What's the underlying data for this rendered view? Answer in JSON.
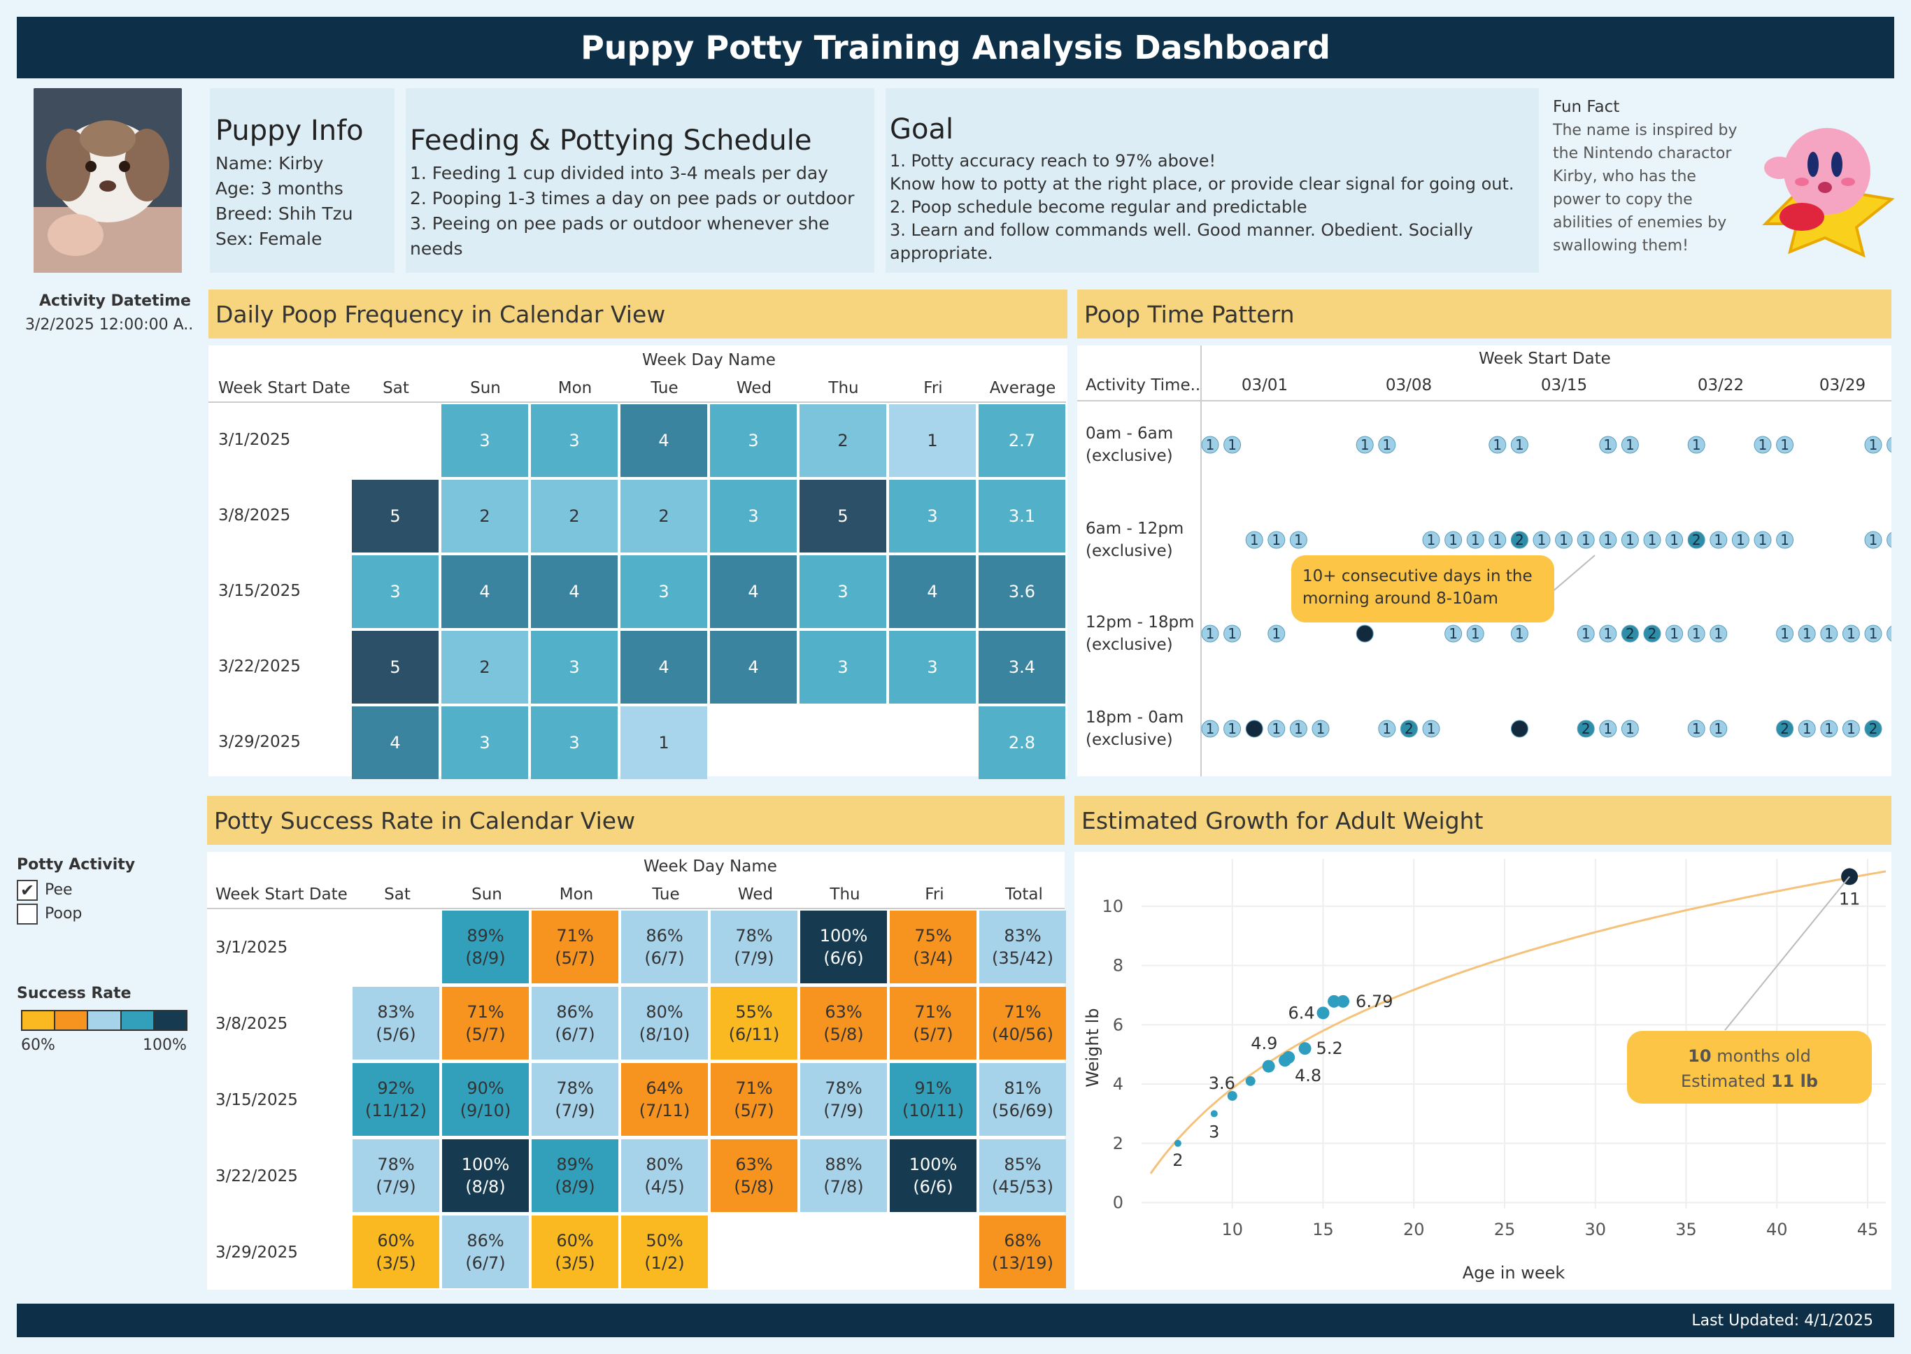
{
  "title": "Puppy Potty Training Analysis Dashboard",
  "footer": "Last Updated: 4/1/2025",
  "puppy_info": {
    "heading": "Puppy Info",
    "lines": [
      "Name: Kirby",
      "Age: 3 months",
      "Breed: Shih Tzu",
      "Sex: Female"
    ]
  },
  "schedule": {
    "heading": "Feeding & Pottying Schedule",
    "lines": [
      "1. Feeding 1 cup divided into 3-4 meals per day",
      "2. Pooping 1-3 times a day on pee pads or outdoor",
      "3. Peeing on pee pads or outdoor whenever she needs"
    ]
  },
  "goal": {
    "heading": "Goal",
    "lines": [
      "1. Potty accuracy reach to 97% above!",
      "Know how to potty at the right place, or provide clear signal for going out.",
      "2. Poop schedule become regular and predictable",
      "3. Learn and follow commands well. Good manner. Obedient. Socially appropriate."
    ]
  },
  "fun_fact": {
    "heading": "Fun Fact",
    "lines": [
      "The name is inspired by",
      "the Nintendo charactor",
      "Kirby, who has the",
      "power to copy the",
      "abilities of enemies by",
      "swallowing them!"
    ]
  },
  "filters": {
    "activity_datetime_label": "Activity Datetime",
    "activity_datetime_value": "3/2/2025 12:00:00 A..",
    "potty_activity_label": "Potty Activity",
    "options": [
      {
        "label": "Pee",
        "checked": true
      },
      {
        "label": "Poop",
        "checked": false
      }
    ],
    "success_rate_label": "Success Rate",
    "legend_min": "60%",
    "legend_max": "100%",
    "legend_colors": [
      "#fbb921",
      "#f7931f",
      "#a6d2ea",
      "#33a0bb",
      "#163b51"
    ]
  },
  "poop_calendar": {
    "title": "Daily Poop Frequency in Calendar View",
    "top_header": "Week Day Name",
    "row_header": "Week Start Date",
    "columns": [
      "Sat",
      "Sun",
      "Mon",
      "Tue",
      "Wed",
      "Thu",
      "Fri",
      "Average"
    ],
    "rows": [
      {
        "date": "3/1/2025",
        "values": [
          "",
          "3",
          "3",
          "4",
          "3",
          "2",
          "1",
          "2.7"
        ]
      },
      {
        "date": "3/8/2025",
        "values": [
          "5",
          "2",
          "2",
          "2",
          "3",
          "5",
          "3",
          "3.1"
        ]
      },
      {
        "date": "3/15/2025",
        "values": [
          "3",
          "4",
          "4",
          "3",
          "4",
          "3",
          "4",
          "3.6"
        ]
      },
      {
        "date": "3/22/2025",
        "values": [
          "5",
          "2",
          "3",
          "4",
          "4",
          "3",
          "3",
          "3.4"
        ]
      },
      {
        "date": "3/29/2025",
        "values": [
          "4",
          "3",
          "3",
          "1",
          "",
          "",
          "",
          "2.8"
        ]
      }
    ]
  },
  "time_pattern": {
    "title": "Poop Time Pattern",
    "row_header": "Activity Time..",
    "top_header": "Week Start Date",
    "week_labels": [
      "03/01",
      "03/08",
      "03/15",
      "03/22",
      "03/29"
    ],
    "rows": [
      [
        "0am - 6am",
        "(exclusive)"
      ],
      [
        "6am - 12pm",
        "(exclusive)"
      ],
      [
        "12pm - 18pm",
        "(exclusive)"
      ],
      [
        "18pm - 0am",
        "(exclusive)"
      ]
    ],
    "annotation": [
      "10+ consecutive days in the",
      "morning around 8-10am"
    ]
  },
  "success_calendar": {
    "title": "Potty Success Rate in Calendar View",
    "top_header": "Week Day Name",
    "row_header": "Week Start Date",
    "columns": [
      "Sat",
      "Sun",
      "Mon",
      "Tue",
      "Wed",
      "Thu",
      "Fri",
      "Total"
    ],
    "rows": [
      {
        "date": "3/1/2025",
        "values": [
          null,
          [
            "89%",
            "(8/9)"
          ],
          [
            "71%",
            "(5/7)"
          ],
          [
            "86%",
            "(6/7)"
          ],
          [
            "78%",
            "(7/9)"
          ],
          [
            "100%",
            "(6/6)"
          ],
          [
            "75%",
            "(3/4)"
          ],
          [
            "83%",
            "(35/42)"
          ]
        ]
      },
      {
        "date": "3/8/2025",
        "values": [
          [
            "83%",
            "(5/6)"
          ],
          [
            "71%",
            "(5/7)"
          ],
          [
            "86%",
            "(6/7)"
          ],
          [
            "80%",
            "(8/10)"
          ],
          [
            "55%",
            "(6/11)"
          ],
          [
            "63%",
            "(5/8)"
          ],
          [
            "71%",
            "(5/7)"
          ],
          [
            "71%",
            "(40/56)"
          ]
        ]
      },
      {
        "date": "3/15/2025",
        "values": [
          [
            "92%",
            "(11/12)"
          ],
          [
            "90%",
            "(9/10)"
          ],
          [
            "78%",
            "(7/9)"
          ],
          [
            "64%",
            "(7/11)"
          ],
          [
            "71%",
            "(5/7)"
          ],
          [
            "78%",
            "(7/9)"
          ],
          [
            "91%",
            "(10/11)"
          ],
          [
            "81%",
            "(56/69)"
          ]
        ]
      },
      {
        "date": "3/22/2025",
        "values": [
          [
            "78%",
            "(7/9)"
          ],
          [
            "100%",
            "(8/8)"
          ],
          [
            "89%",
            "(8/9)"
          ],
          [
            "80%",
            "(4/5)"
          ],
          [
            "63%",
            "(5/8)"
          ],
          [
            "88%",
            "(7/8)"
          ],
          [
            "100%",
            "(6/6)"
          ],
          [
            "85%",
            "(45/53)"
          ]
        ]
      },
      {
        "date": "3/29/2025",
        "values": [
          [
            "60%",
            "(3/5)"
          ],
          [
            "86%",
            "(6/7)"
          ],
          [
            "60%",
            "(3/5)"
          ],
          [
            "50%",
            "(1/2)"
          ],
          null,
          null,
          null,
          [
            "68%",
            "(13/19)"
          ]
        ]
      }
    ]
  },
  "chart_data": {
    "type": "scatter",
    "title": "Estimated Growth for Adult Weight",
    "xlabel": "Age in week",
    "ylabel": "Weight lb",
    "xlim": [
      5,
      46
    ],
    "ylim": [
      -0.2,
      11.6
    ],
    "xticks": [
      10,
      15,
      20,
      25,
      30,
      35,
      40,
      45
    ],
    "yticks": [
      0,
      2,
      4,
      6,
      8,
      10
    ],
    "grid": true,
    "points": [
      {
        "x": 7,
        "y": 2,
        "label": "2"
      },
      {
        "x": 9,
        "y": 3,
        "label": "3"
      },
      {
        "x": 10,
        "y": 3.6,
        "label": "3.6"
      },
      {
        "x": 11,
        "y": 4.1,
        "label": ""
      },
      {
        "x": 12,
        "y": 4.6,
        "label": ""
      },
      {
        "x": 12.9,
        "y": 4.8,
        "label": "4.8"
      },
      {
        "x": 13.1,
        "y": 4.9,
        "label": "4.9"
      },
      {
        "x": 14,
        "y": 5.2,
        "label": "5.2"
      },
      {
        "x": 15,
        "y": 6.4,
        "label": "6.4"
      },
      {
        "x": 15.6,
        "y": 6.79,
        "label": ""
      },
      {
        "x": 16.1,
        "y": 6.79,
        "label": "6.79"
      },
      {
        "x": 44,
        "y": 11,
        "label": "11"
      }
    ],
    "trend": "log",
    "annotation": {
      "line1_num": "10",
      "line1_text": " months old",
      "line2_text": "Estimated ",
      "line2_num": "11 lb"
    }
  },
  "colors": {
    "header": "#0d2f47",
    "section": "#f7d57e",
    "info": "#dcedf6"
  }
}
